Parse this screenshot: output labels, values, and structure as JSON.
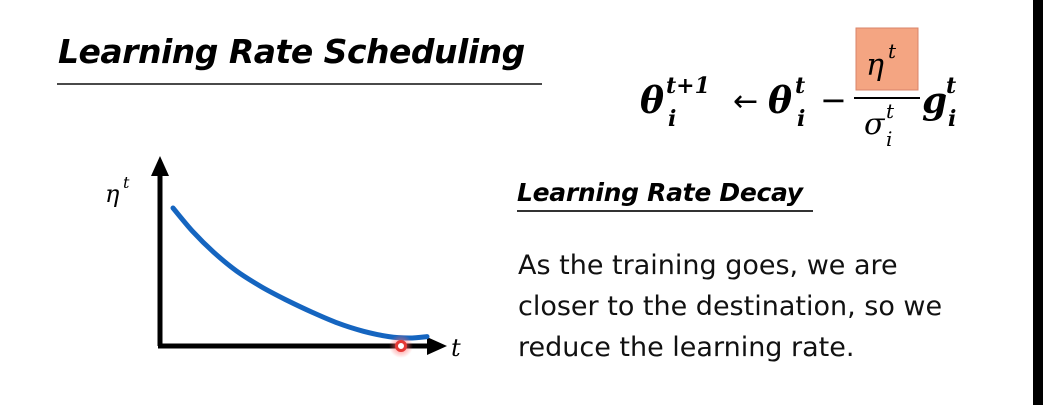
{
  "slide": {
    "title": "Learning Rate Scheduling",
    "formula": {
      "lhs_symbol": "θ",
      "lhs_sup": "t+1",
      "lhs_sub": "i",
      "arrow": "←",
      "theta_symbol": "θ",
      "theta_sup": "t",
      "theta_sub": "i",
      "minus": "−",
      "eta_symbol": "η",
      "eta_sup": "t",
      "sigma_symbol": "σ",
      "sigma_sup": "t",
      "sigma_sub": "i",
      "g_symbol": "g",
      "g_sup": "t",
      "g_sub": "i",
      "highlight_color": "#f4a582"
    },
    "graph": {
      "y_label": "η",
      "y_label_sup": "t",
      "x_label": "t",
      "curve_color": "#1565c0",
      "marker_color": "#e53935",
      "curve_points": [
        [
          0.0,
          1.0
        ],
        [
          0.08,
          0.82
        ],
        [
          0.16,
          0.67
        ],
        [
          0.25,
          0.53
        ],
        [
          0.35,
          0.41
        ],
        [
          0.45,
          0.31
        ],
        [
          0.55,
          0.22
        ],
        [
          0.65,
          0.14
        ],
        [
          0.75,
          0.08
        ],
        [
          0.85,
          0.04
        ],
        [
          0.93,
          0.03
        ],
        [
          1.0,
          0.04
        ]
      ]
    },
    "decay_title": "Learning Rate Decay",
    "description_lines": [
      "As the training goes, we are",
      "closer to the destination, so we",
      "reduce the learning rate."
    ]
  }
}
